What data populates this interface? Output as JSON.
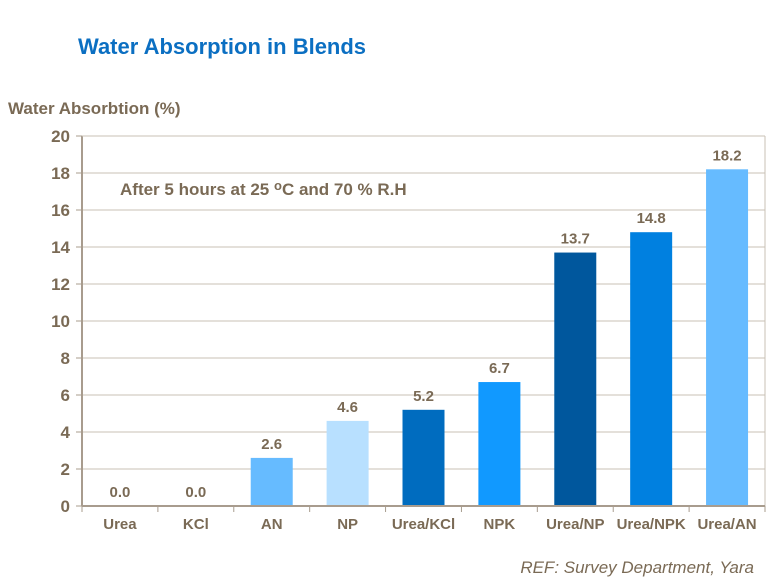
{
  "chart_data": {
    "type": "bar",
    "title": "Water Absorption in Blends",
    "ylabel": "Water Absorbtion (%)",
    "xlabel": "",
    "annotation": "After 5 hours at 25 oC and 70 % R.H",
    "categories": [
      "Urea",
      "KCl",
      "AN",
      "NP",
      "Urea/KCl",
      "NPK",
      "Urea/NP",
      "Urea/NPK",
      "Urea/AN"
    ],
    "values": [
      0.0,
      0.0,
      2.6,
      4.6,
      5.2,
      6.7,
      13.7,
      14.8,
      18.2
    ],
    "data_labels": [
      "0.0",
      "0.0",
      "2.6",
      "4.6",
      "5.2",
      "6.7",
      "13.7",
      "14.8",
      "18.2"
    ],
    "colors": [
      "#66bbff",
      "#66bbff",
      "#66bbff",
      "#b8e0ff",
      "#006cbf",
      "#1199ff",
      "#00579d",
      "#0080e0",
      "#66bbff"
    ],
    "ylim": [
      0,
      20
    ],
    "yticks": [
      0,
      2,
      4,
      6,
      8,
      10,
      12,
      14,
      16,
      18,
      20
    ],
    "grid": true,
    "legend": "none"
  },
  "reference": "REF: Survey Department, Yara"
}
